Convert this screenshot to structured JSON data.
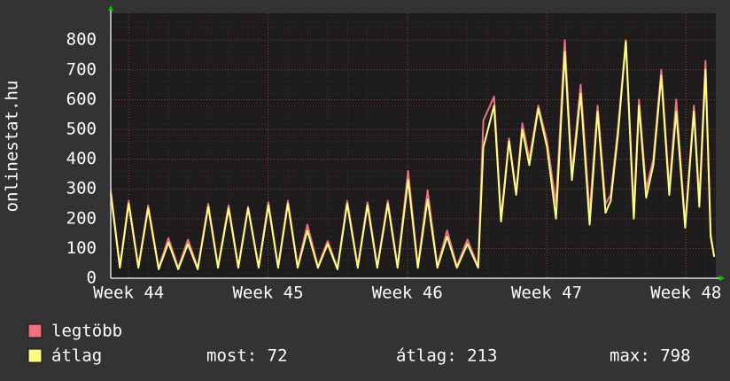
{
  "chart_data": {
    "type": "line",
    "ylabel": "onlinestat.hu",
    "xlim": [
      -0.9,
      29.5
    ],
    "ylim": [
      0,
      890
    ],
    "xticks": [
      {
        "value": 0,
        "label": "Week 44"
      },
      {
        "value": 7,
        "label": "Week 45"
      },
      {
        "value": 14,
        "label": "Week 46"
      },
      {
        "value": 21,
        "label": "Week 47"
      },
      {
        "value": 28,
        "label": "Week 48"
      }
    ],
    "yticks": [
      0,
      100,
      200,
      300,
      400,
      500,
      600,
      700,
      800
    ],
    "grid": true,
    "x": [
      -0.9,
      -0.44,
      0.0,
      0.49,
      0.98,
      1.51,
      2.0,
      2.49,
      2.98,
      3.47,
      4.0,
      4.49,
      5.02,
      5.51,
      6.0,
      6.53,
      7.02,
      7.51,
      8.0,
      8.49,
      8.98,
      9.51,
      10.0,
      10.49,
      10.98,
      11.51,
      12.0,
      12.49,
      13.02,
      13.51,
      14.04,
      14.53,
      15.02,
      15.51,
      16.0,
      16.49,
      17.02,
      17.56,
      17.82,
      18.36,
      18.71,
      19.11,
      19.47,
      19.78,
      20.13,
      20.58,
      21.02,
      21.47,
      21.91,
      22.27,
      22.71,
      23.16,
      23.56,
      23.96,
      24.22,
      24.58,
      24.98,
      25.38,
      25.64,
      26.0,
      26.36,
      26.76,
      27.16,
      27.51,
      27.96,
      28.4,
      28.67,
      28.98,
      29.24,
      29.42
    ],
    "series": [
      {
        "name": "legtöbb",
        "color": "#f07080",
        "values": [
          295,
          40,
          260,
          40,
          245,
          35,
          135,
          35,
          130,
          35,
          250,
          40,
          245,
          40,
          240,
          40,
          255,
          40,
          260,
          40,
          180,
          40,
          125,
          35,
          260,
          40,
          255,
          40,
          260,
          40,
          360,
          40,
          295,
          40,
          160,
          40,
          130,
          40,
          530,
          610,
          200,
          470,
          290,
          520,
          400,
          580,
          460,
          250,
          800,
          350,
          650,
          220,
          580,
          250,
          280,
          500,
          800,
          230,
          600,
          300,
          400,
          700,
          300,
          600,
          180,
          580,
          260,
          730,
          150,
          72
        ]
      },
      {
        "name": "átlag",
        "color": "#ffff80",
        "values": [
          285,
          35,
          250,
          35,
          235,
          30,
          120,
          30,
          115,
          30,
          240,
          35,
          235,
          35,
          235,
          35,
          245,
          35,
          250,
          35,
          160,
          35,
          115,
          30,
          250,
          35,
          245,
          35,
          250,
          35,
          330,
          35,
          265,
          35,
          140,
          35,
          115,
          35,
          440,
          580,
          190,
          460,
          280,
          500,
          380,
          570,
          440,
          200,
          760,
          330,
          620,
          180,
          560,
          220,
          260,
          480,
          795,
          200,
          580,
          270,
          380,
          680,
          280,
          560,
          170,
          560,
          240,
          700,
          140,
          72
        ]
      }
    ],
    "stats": [
      "most: 72",
      "átlag: 213",
      "max: 798"
    ]
  }
}
